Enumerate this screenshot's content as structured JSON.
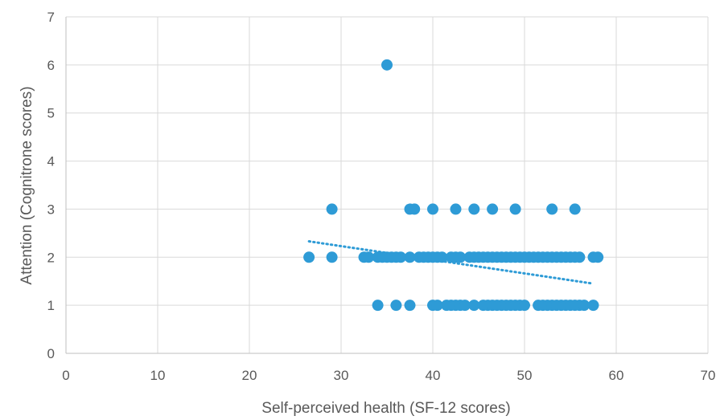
{
  "chart_data": {
    "type": "scatter",
    "title": "",
    "xlabel": "Self-perceived health (SF-12 scores)",
    "ylabel": "Attention (Cognitrone scores)",
    "xlim": [
      0,
      70
    ],
    "ylim": [
      0,
      7
    ],
    "xticks": [
      "0",
      "10",
      "20",
      "30",
      "40",
      "50",
      "60",
      "70"
    ],
    "yticks": [
      "0",
      "1",
      "2",
      "3",
      "4",
      "5",
      "6",
      "7"
    ],
    "grid": true,
    "legend": "none",
    "marker_color": "#2e9bd6",
    "trendline_color": "#2e9bd6",
    "trendline": {
      "type": "linear",
      "style": "dotted",
      "x": [
        26.5,
        57.5
      ],
      "y": [
        2.33,
        1.45
      ]
    },
    "points": [
      {
        "x": 35,
        "y": 6
      },
      {
        "x": 29,
        "y": 3
      },
      {
        "x": 37.5,
        "y": 3
      },
      {
        "x": 38,
        "y": 3
      },
      {
        "x": 40,
        "y": 3
      },
      {
        "x": 42.5,
        "y": 3
      },
      {
        "x": 44.5,
        "y": 3
      },
      {
        "x": 46.5,
        "y": 3
      },
      {
        "x": 49,
        "y": 3
      },
      {
        "x": 53,
        "y": 3
      },
      {
        "x": 55.5,
        "y": 3
      },
      {
        "x": 26.5,
        "y": 2
      },
      {
        "x": 29,
        "y": 2
      },
      {
        "x": 32.5,
        "y": 2
      },
      {
        "x": 33,
        "y": 2
      },
      {
        "x": 34,
        "y": 2
      },
      {
        "x": 34.5,
        "y": 2
      },
      {
        "x": 35,
        "y": 2
      },
      {
        "x": 35.5,
        "y": 2
      },
      {
        "x": 36,
        "y": 2
      },
      {
        "x": 36.5,
        "y": 2
      },
      {
        "x": 37.5,
        "y": 2
      },
      {
        "x": 38.5,
        "y": 2
      },
      {
        "x": 39,
        "y": 2
      },
      {
        "x": 39.5,
        "y": 2
      },
      {
        "x": 40,
        "y": 2
      },
      {
        "x": 40.5,
        "y": 2
      },
      {
        "x": 41,
        "y": 2
      },
      {
        "x": 42,
        "y": 2
      },
      {
        "x": 42.5,
        "y": 2
      },
      {
        "x": 43,
        "y": 2
      },
      {
        "x": 44,
        "y": 2
      },
      {
        "x": 44.5,
        "y": 2
      },
      {
        "x": 45,
        "y": 2
      },
      {
        "x": 45.5,
        "y": 2
      },
      {
        "x": 46,
        "y": 2
      },
      {
        "x": 46.5,
        "y": 2
      },
      {
        "x": 47,
        "y": 2
      },
      {
        "x": 47.5,
        "y": 2
      },
      {
        "x": 48,
        "y": 2
      },
      {
        "x": 48.5,
        "y": 2
      },
      {
        "x": 49,
        "y": 2
      },
      {
        "x": 49.5,
        "y": 2
      },
      {
        "x": 50,
        "y": 2
      },
      {
        "x": 50.5,
        "y": 2
      },
      {
        "x": 51,
        "y": 2
      },
      {
        "x": 51.5,
        "y": 2
      },
      {
        "x": 52,
        "y": 2
      },
      {
        "x": 52.5,
        "y": 2
      },
      {
        "x": 53,
        "y": 2
      },
      {
        "x": 53.5,
        "y": 2
      },
      {
        "x": 54,
        "y": 2
      },
      {
        "x": 54.5,
        "y": 2
      },
      {
        "x": 55,
        "y": 2
      },
      {
        "x": 55.5,
        "y": 2
      },
      {
        "x": 56,
        "y": 2
      },
      {
        "x": 57.5,
        "y": 2
      },
      {
        "x": 58,
        "y": 2
      },
      {
        "x": 34,
        "y": 1
      },
      {
        "x": 36,
        "y": 1
      },
      {
        "x": 37.5,
        "y": 1
      },
      {
        "x": 40,
        "y": 1
      },
      {
        "x": 40.5,
        "y": 1
      },
      {
        "x": 41.5,
        "y": 1
      },
      {
        "x": 42,
        "y": 1
      },
      {
        "x": 42.5,
        "y": 1
      },
      {
        "x": 43,
        "y": 1
      },
      {
        "x": 43.5,
        "y": 1
      },
      {
        "x": 44.5,
        "y": 1
      },
      {
        "x": 45.5,
        "y": 1
      },
      {
        "x": 46,
        "y": 1
      },
      {
        "x": 46.5,
        "y": 1
      },
      {
        "x": 47,
        "y": 1
      },
      {
        "x": 47.5,
        "y": 1
      },
      {
        "x": 48,
        "y": 1
      },
      {
        "x": 48.5,
        "y": 1
      },
      {
        "x": 49,
        "y": 1
      },
      {
        "x": 49.5,
        "y": 1
      },
      {
        "x": 50,
        "y": 1
      },
      {
        "x": 51.5,
        "y": 1
      },
      {
        "x": 52,
        "y": 1
      },
      {
        "x": 52.5,
        "y": 1
      },
      {
        "x": 53,
        "y": 1
      },
      {
        "x": 53.5,
        "y": 1
      },
      {
        "x": 54,
        "y": 1
      },
      {
        "x": 54.5,
        "y": 1
      },
      {
        "x": 55,
        "y": 1
      },
      {
        "x": 55.5,
        "y": 1
      },
      {
        "x": 56,
        "y": 1
      },
      {
        "x": 56.5,
        "y": 1
      },
      {
        "x": 57.5,
        "y": 1
      }
    ]
  }
}
